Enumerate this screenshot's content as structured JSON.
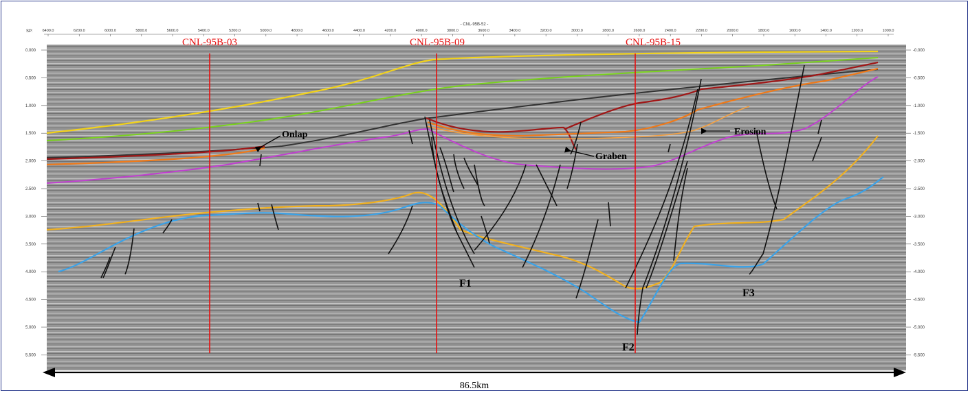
{
  "section": {
    "line_name": "- CNL-95B-52 -",
    "sp_label": "SP:",
    "sp_ticks": [
      "6400.0",
      "6200.0",
      "6000.0",
      "5800.0",
      "5600.0",
      "5400.0",
      "5200.0",
      "5000.0",
      "4800.0",
      "4600.0",
      "4400.0",
      "4200.0",
      "4000.0",
      "3800.0",
      "3600.0",
      "3400.0",
      "3200.0",
      "3000.0",
      "2800.0",
      "2600.0",
      "2400.0",
      "2200.0",
      "2000.0",
      "1800.0",
      "1600.0",
      "1400.0",
      "1200.0",
      "1000.0"
    ],
    "time_ticks": [
      "0.000",
      "0.500",
      "1.000",
      "1.500",
      "2.000",
      "2.500",
      "3.000",
      "3.500",
      "4.000",
      "4.500",
      "5.000",
      "5.500"
    ],
    "scale_label": "86.5km",
    "wells": [
      {
        "name": "CNL-95B-03"
      },
      {
        "name": "CNL-95B-09"
      },
      {
        "name": "CNL-95B-15"
      }
    ],
    "annotations": {
      "onlap": "Onlap",
      "graben": "Graben",
      "erosion": "Erosion"
    },
    "faults": {
      "f1": "F1",
      "f2": "F2",
      "f3": "F3"
    },
    "colors": {
      "well_line": "#e81010",
      "horizon_yellow_top": "#f2d21a",
      "horizon_green": "#7ad21e",
      "horizon_dark": "#333333",
      "horizon_darkred": "#a01818",
      "horizon_orange": "#ef7a1a",
      "horizon_magenta": "#c040d0",
      "horizon_gold": "#f0b020",
      "horizon_blue": "#3aa2e8",
      "fault": "#111111",
      "seismic_bg": "#9a9a9a",
      "frame": "#2a3a8c"
    }
  }
}
